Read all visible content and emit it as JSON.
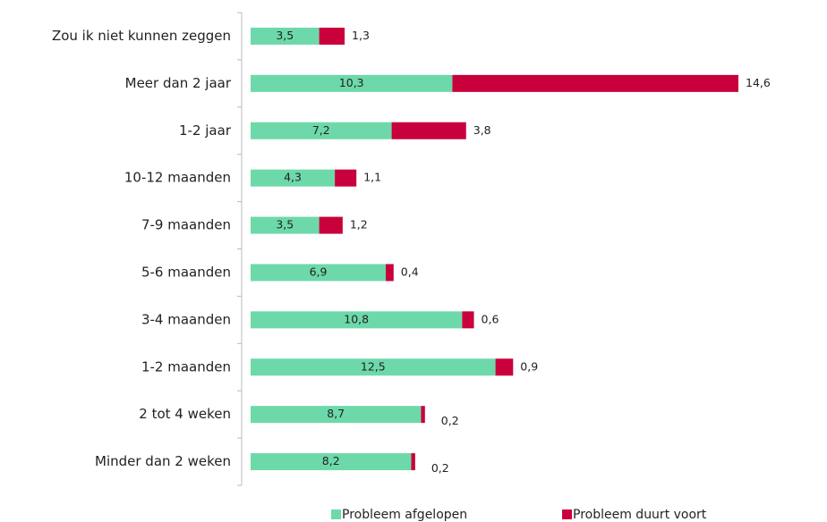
{
  "chart_data": {
    "type": "stacked_bar_horizontal",
    "categories": [
      "Zou ik niet kunnen zeggen",
      "Meer dan 2 jaar",
      "1-2 jaar",
      "10-12 maanden",
      "7-9 maanden",
      "5-6 maanden",
      "3-4 maanden",
      "1-2 maanden",
      "2 tot 4 weken",
      "Minder dan 2 weken"
    ],
    "series": [
      {
        "name": "Probleem afgelopen",
        "color": "#6dd9aa",
        "values": [
          3.5,
          10.3,
          7.2,
          4.3,
          3.5,
          6.9,
          10.8,
          12.5,
          8.7,
          8.2
        ],
        "value_labels": [
          "3,5",
          "10,3",
          "7,2",
          "4,3",
          "3,5",
          "6,9",
          "10,8",
          "12,5",
          "8,7",
          "8,2"
        ]
      },
      {
        "name": "Probleem duurt voort",
        "color": "#c8003c",
        "values": [
          1.3,
          14.6,
          3.8,
          1.1,
          1.2,
          0.4,
          0.6,
          0.9,
          0.2,
          0.2
        ],
        "value_labels": [
          "1,3",
          "14,6",
          "3,8",
          "1,1",
          "1,2",
          "0,4",
          "0,6",
          "0,9",
          "0,2",
          "0,2"
        ]
      }
    ],
    "legend": "bottom"
  }
}
